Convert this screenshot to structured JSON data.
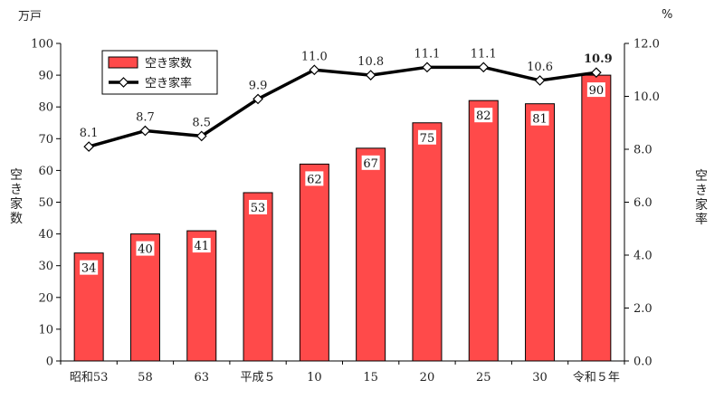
{
  "chart_data": {
    "type": "bar+line",
    "categories": [
      "昭和53",
      "58",
      "63",
      "平成５",
      "10",
      "15",
      "20",
      "25",
      "30",
      "令和５年"
    ],
    "series": [
      {
        "name": "空き家数",
        "type": "bar",
        "axis": "left",
        "color": "#ff4a4a",
        "values": [
          34,
          40,
          41,
          53,
          62,
          67,
          75,
          82,
          81,
          90
        ],
        "labels": [
          "34",
          "40",
          "41",
          "53",
          "62",
          "67",
          "75",
          "82",
          "81",
          "90"
        ]
      },
      {
        "name": "空き家率",
        "type": "line",
        "axis": "right",
        "color": "#000000",
        "values": [
          8.1,
          8.7,
          8.5,
          9.9,
          11.0,
          10.8,
          11.1,
          11.1,
          10.6,
          10.9
        ],
        "labels": [
          "8.1",
          "8.7",
          "8.5",
          "9.9",
          "11.0",
          "10.8",
          "11.1",
          "11.1",
          "10.6",
          "10.9"
        ]
      }
    ],
    "y_left": {
      "label": "空き家数",
      "unit": "万戸",
      "ylim": [
        0,
        100
      ],
      "ticks": [
        "0",
        "10",
        "20",
        "30",
        "40",
        "50",
        "60",
        "70",
        "80",
        "90",
        "100"
      ]
    },
    "y_right": {
      "label": "空き家率",
      "unit": "%",
      "ylim": [
        0,
        12
      ],
      "ticks": [
        "0.0",
        "2.0",
        "4.0",
        "6.0",
        "8.0",
        "10.0",
        "12.0"
      ]
    },
    "legend": {
      "placement": "top-left",
      "entries": [
        "空き家数",
        "空き家率"
      ]
    },
    "grid": false
  }
}
